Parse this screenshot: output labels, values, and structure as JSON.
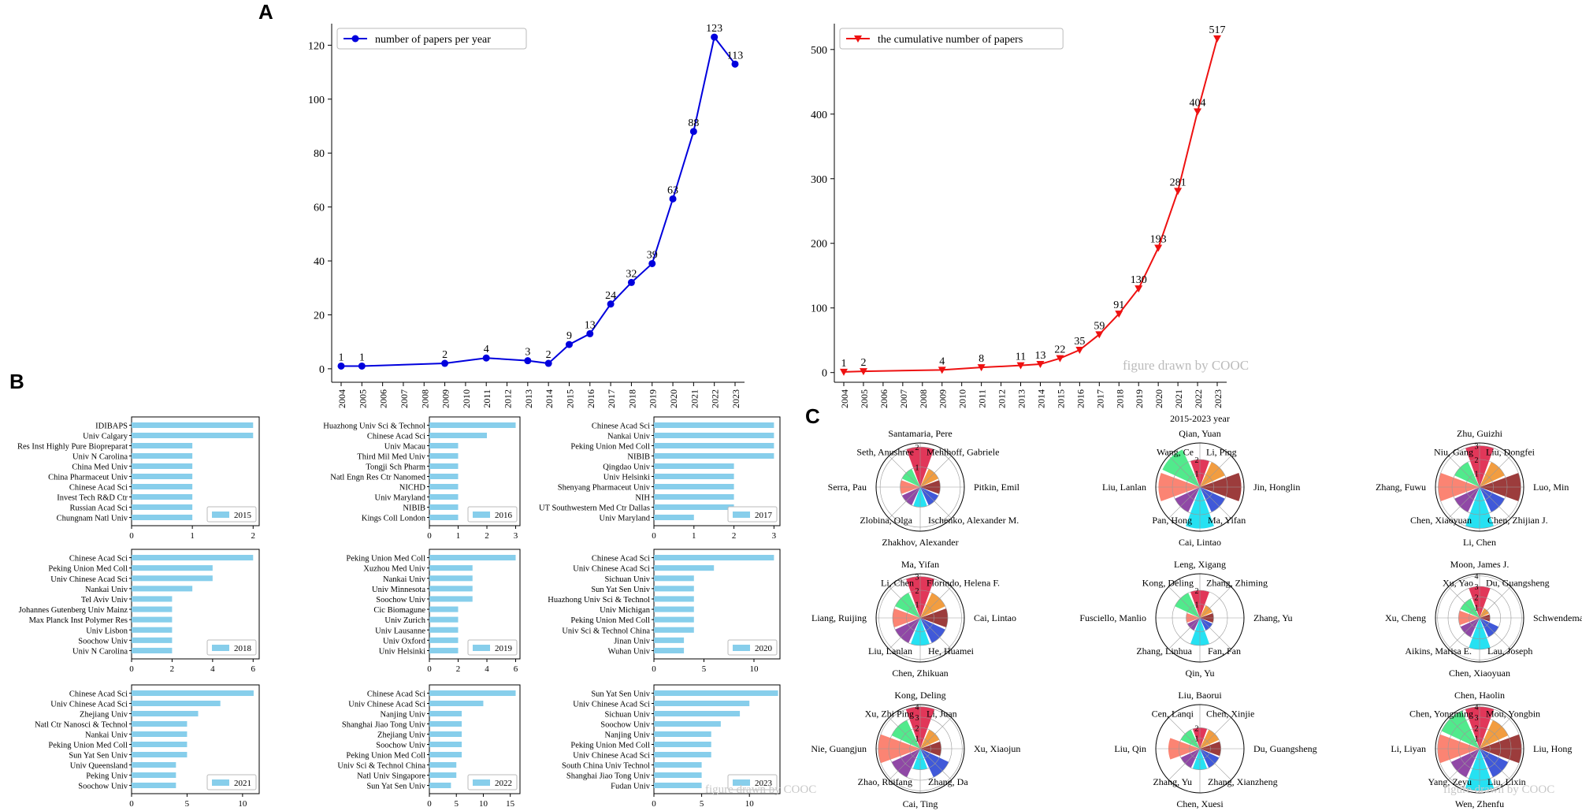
{
  "panel_labels": {
    "A": "A",
    "B": "B",
    "C": "C"
  },
  "watermark": "figure drawn by COOC",
  "chart_data": [
    {
      "id": "papers_per_year",
      "type": "line",
      "legend": "number of papers per year",
      "legend_position": "top-left",
      "color": "#0000dd",
      "marker": "circle",
      "x_ticks": [
        "2004",
        "2005",
        "2006",
        "2007",
        "2008",
        "2009",
        "2010",
        "2011",
        "2012",
        "2013",
        "2014",
        "2015",
        "2016",
        "2017",
        "2018",
        "2019",
        "2020",
        "2021",
        "2022",
        "2023"
      ],
      "points": [
        {
          "x": "2004",
          "y": 1,
          "label": "1"
        },
        {
          "x": "2005",
          "y": 1,
          "label": "1"
        },
        {
          "x": "2009",
          "y": 2,
          "label": "2"
        },
        {
          "x": "2011",
          "y": 4,
          "label": "4"
        },
        {
          "x": "2013",
          "y": 3,
          "label": "3"
        },
        {
          "x": "2014",
          "y": 2,
          "label": "2"
        },
        {
          "x": "2015",
          "y": 9,
          "label": "9"
        },
        {
          "x": "2016",
          "y": 13,
          "label": "13"
        },
        {
          "x": "2017",
          "y": 24,
          "label": "24"
        },
        {
          "x": "2018",
          "y": 32,
          "label": "32"
        },
        {
          "x": "2019",
          "y": 39,
          "label": "39"
        },
        {
          "x": "2020",
          "y": 63,
          "label": "63"
        },
        {
          "x": "2021",
          "y": 88,
          "label": "88"
        },
        {
          "x": "2022",
          "y": 123,
          "label": "123"
        },
        {
          "x": "2023",
          "y": 113,
          "label": "113"
        }
      ],
      "ylim": [
        -5,
        128
      ],
      "y_ticks": [
        0,
        20,
        40,
        60,
        80,
        100,
        120
      ]
    },
    {
      "id": "cumulative_papers",
      "type": "line",
      "legend": "the cumulative number of papers",
      "legend_position": "top-left",
      "color": "#ee1111",
      "marker": "triangle-down",
      "x_ticks": [
        "2004",
        "2005",
        "2006",
        "2007",
        "2008",
        "2009",
        "2010",
        "2011",
        "2012",
        "2013",
        "2014",
        "2015",
        "2016",
        "2017",
        "2018",
        "2019",
        "2020",
        "2021",
        "2022",
        "2023"
      ],
      "points": [
        {
          "x": "2004",
          "y": 1,
          "label": "1"
        },
        {
          "x": "2005",
          "y": 2,
          "label": "2"
        },
        {
          "x": "2009",
          "y": 4,
          "label": "4"
        },
        {
          "x": "2011",
          "y": 8,
          "label": "8"
        },
        {
          "x": "2013",
          "y": 11,
          "label": "11"
        },
        {
          "x": "2014",
          "y": 13,
          "label": "13"
        },
        {
          "x": "2015",
          "y": 22,
          "label": "22"
        },
        {
          "x": "2016",
          "y": 35,
          "label": "35"
        },
        {
          "x": "2017",
          "y": 59,
          "label": "59"
        },
        {
          "x": "2018",
          "y": 91,
          "label": "91"
        },
        {
          "x": "2019",
          "y": 130,
          "label": "130"
        },
        {
          "x": "2020",
          "y": 193,
          "label": "193"
        },
        {
          "x": "2021",
          "y": 281,
          "label": "281"
        },
        {
          "x": "2022",
          "y": 404,
          "label": "404"
        },
        {
          "x": "2023",
          "y": 517,
          "label": "517"
        }
      ],
      "ylim": [
        -15,
        540
      ],
      "y_ticks": [
        0,
        100,
        200,
        300,
        400,
        500
      ]
    },
    {
      "id": "institutions_by_year",
      "type": "bar",
      "orientation": "horizontal",
      "bar_color": "#87ceeb",
      "panels": [
        {
          "year": "2015",
          "xmax": 2.1,
          "ticks": [
            0,
            1,
            2
          ],
          "categories": [
            "IDIBAPS",
            "Univ Calgary",
            "Res Inst Highly Pure Biopreparat",
            "Univ N Carolina",
            "China Med Univ",
            "China Pharmaceut Univ",
            "Chinese Acad Sci",
            "Invest Tech R&D Ctr",
            "Russian Acad Sci",
            "Chungnam Natl Univ"
          ],
          "values": [
            2,
            2,
            1,
            1,
            1,
            1,
            1,
            1,
            1,
            1
          ]
        },
        {
          "year": "2016",
          "xmax": 3.15,
          "ticks": [
            0,
            1,
            2,
            3
          ],
          "categories": [
            "Huazhong Univ Sci & Technol",
            "Chinese Acad Sci",
            "Univ Macau",
            "Third Mil Med Univ",
            "Tongji Sch Pharm",
            "Natl Engn Res Ctr Nanomed",
            "NICHD",
            "Univ Maryland",
            "NIBIB",
            "Kings Coll London"
          ],
          "values": [
            3,
            2,
            1,
            1,
            1,
            1,
            1,
            1,
            1,
            1
          ]
        },
        {
          "year": "2017",
          "xmax": 3.15,
          "ticks": [
            0,
            1,
            2,
            3
          ],
          "categories": [
            "Chinese Acad Sci",
            "Nankai Univ",
            "Peking Union Med Coll",
            "NIBIB",
            "Qingdao Univ",
            "Univ Helsinki",
            "Shenyang Pharmaceut Univ",
            "NIH",
            "UT Southwestern Med Ctr Dallas",
            "Univ Maryland"
          ],
          "values": [
            3,
            3,
            3,
            3,
            2,
            2,
            2,
            2,
            2,
            1
          ]
        },
        {
          "year": "2018",
          "xmax": 6.3,
          "ticks": [
            0,
            2,
            4,
            6
          ],
          "categories": [
            "Chinese Acad Sci",
            "Peking Union Med Coll",
            "Univ Chinese Acad Sci",
            "Nankai Univ",
            "Tel Aviv Univ",
            "Johannes Gutenberg Univ Mainz",
            "Max Planck Inst Polymer Res",
            "Univ Lisbon",
            "Soochow Univ",
            "Univ N Carolina"
          ],
          "values": [
            6,
            4,
            4,
            3,
            2,
            2,
            2,
            2,
            2,
            2
          ]
        },
        {
          "year": "2019",
          "xmax": 6.3,
          "ticks": [
            0,
            2,
            4,
            6
          ],
          "categories": [
            "Peking Union Med Coll",
            "Xuzhou Med Univ",
            "Nankai Univ",
            "Univ Minnesota",
            "Soochow Univ",
            "Cic Biomagune",
            "Univ Zurich",
            "Univ Lausanne",
            "Univ Oxford",
            "Univ Helsinki"
          ],
          "values": [
            6,
            3,
            3,
            3,
            3,
            2,
            2,
            2,
            2,
            2
          ]
        },
        {
          "year": "2020",
          "xmax": 12.6,
          "ticks": [
            0,
            5,
            10
          ],
          "categories": [
            "Chinese Acad Sci",
            "Univ Chinese Acad Sci",
            "Sichuan Univ",
            "Sun Yat Sen Univ",
            "Huazhong Univ Sci & Technol",
            "Univ Michigan",
            "Peking Union Med Coll",
            "Univ Sci & Technol China",
            "Jinan Univ",
            "Wuhan Univ"
          ],
          "values": [
            12,
            6,
            4,
            4,
            4,
            4,
            4,
            4,
            3,
            3
          ]
        },
        {
          "year": "2021",
          "xmax": 11.5,
          "ticks": [
            0,
            5,
            10
          ],
          "categories": [
            "Chinese Acad Sci",
            "Univ Chinese Acad Sci",
            "Zhejiang Univ",
            "Natl Ctr Nanosci & Technol",
            "Nankai Univ",
            "Peking Union Med Coll",
            "Sun Yat Sen Univ",
            "Univ Queensland",
            "Peking Univ",
            "Soochow Univ"
          ],
          "values": [
            11,
            8,
            6,
            5,
            5,
            5,
            5,
            4,
            4,
            4
          ]
        },
        {
          "year": "2022",
          "xmax": 16.8,
          "ticks": [
            0,
            5,
            10,
            15
          ],
          "categories": [
            "Chinese Acad Sci",
            "Univ Chinese Acad Sci",
            "Nanjing Univ",
            "Shanghai Jiao Tong Univ",
            "Zhejiang Univ",
            "Soochow Univ",
            "Peking Union Med Coll",
            "Univ Sci & Technol China",
            "Natl Univ Singapore",
            "Sun Yat Sen Univ"
          ],
          "values": [
            16,
            10,
            6,
            6,
            6,
            6,
            6,
            5,
            5,
            4
          ]
        },
        {
          "year": "2023",
          "xmax": 13.2,
          "ticks": [
            0,
            5,
            10
          ],
          "categories": [
            "Sun Yat Sen Univ",
            "Univ Chinese Acad Sci",
            "Sichuan Univ",
            "Soochow Univ",
            "Nanjing Univ",
            "Peking Union Med Coll",
            "Univ Chinese Acad Sci",
            "South China Univ Technol",
            "Shanghai Jiao Tong Univ",
            "Fudan Univ"
          ],
          "values": [
            13,
            10,
            9,
            7,
            6,
            6,
            6,
            5,
            5,
            5
          ]
        }
      ]
    },
    {
      "id": "author_polar",
      "type": "polar-bar",
      "title": "2015-2023 year",
      "colors": [
        "#dc143c",
        "#f08c1e",
        "#8b1a1a",
        "#1e3cd2",
        "#00dcf0",
        "#7d2896",
        "#fa6e5a",
        "#32e678"
      ],
      "panels": [
        {
          "year": "2015",
          "rmax": 2.2,
          "ticks": [
            "1",
            "2"
          ],
          "authors": [
            "Santamaria, Pere",
            "Mehlhoff, Gabriele",
            "Pitkin, Emil",
            "Ischenko, Alexander M.",
            "Zhakhov, Alexander",
            "Zlobina, Olga",
            "Serra, Pau",
            "Seth, Anushree"
          ],
          "values": [
            2,
            1,
            1,
            1,
            1,
            1,
            1,
            1
          ]
        },
        {
          "year": "2016",
          "rmax": 3.2,
          "ticks": [
            "1",
            "2"
          ],
          "authors": [
            "Qian, Yuan",
            "Li, Ping",
            "Jin, Honglin",
            "Ma, Yifan",
            "Cai, Lintao",
            "Pan, Hong",
            "Liu, Lanlan",
            "Wang, Ce"
          ],
          "values": [
            2,
            2,
            3,
            2,
            3,
            2,
            3,
            3
          ]
        },
        {
          "year": "2017",
          "rmax": 3.2,
          "ticks": [
            "1",
            "2",
            "3"
          ],
          "authors": [
            "Zhu, Guizhi",
            "Liu, Dongfei",
            "Luo, Min",
            "Chen, Zhijian J.",
            "Li, Chen",
            "Chen, Xiaoyuan",
            "Zhang, Fuwu",
            "Niu, Gang"
          ],
          "values": [
            3,
            2,
            3,
            2,
            3,
            2,
            3,
            2
          ]
        },
        {
          "year": "2018",
          "rmax": 3.2,
          "ticks": [
            "1",
            "2",
            "3"
          ],
          "authors": [
            "Ma, Yifan",
            "Florindo, Helena F.",
            "Cai, Lintao",
            "He, Huamei",
            "Chen, Zhikuan",
            "Liu, Lanlan",
            "Liang, Ruijing",
            "Li, Chen"
          ],
          "values": [
            3,
            2,
            2,
            2,
            2,
            2,
            2,
            2
          ]
        },
        {
          "year": "2019",
          "rmax": 3.2,
          "ticks": [
            "1",
            "2"
          ],
          "authors": [
            "Leng, Xigang",
            "Zhang, Zhiming",
            "Zhang, Yu",
            "Fan, Fan",
            "Qin, Yu",
            "Zhang, Linhua",
            "Fusciello, Manlio",
            "Kong, Deling"
          ],
          "values": [
            2,
            1,
            1,
            1,
            2,
            1,
            1,
            2
          ]
        },
        {
          "year": "2020",
          "rmax": 4.2,
          "ticks": [
            "1",
            "2",
            "3",
            "4"
          ],
          "authors": [
            "Moon, James J.",
            "Du, Guangsheng",
            "Schwendeman, Anna",
            "Lau, Joseph",
            "Chen, Xiaoyuan",
            "Aikins, Marisa E.",
            "Xu, Cheng",
            "Xu, Yao"
          ],
          "values": [
            3,
            1,
            1,
            2,
            3,
            2,
            2,
            2
          ]
        },
        {
          "year": "2021",
          "rmax": 4.2,
          "ticks": [
            "1",
            "2",
            "3",
            "4"
          ],
          "authors": [
            "Kong, Deling",
            "Li, Juan",
            "Xu, Xiaojun",
            "Zhang, Da",
            "Cai, Ting",
            "Zhao, Ruifang",
            "Nie, Guangjun",
            "Xu, Zhi Ping"
          ],
          "values": [
            4,
            2,
            2,
            3,
            2,
            3,
            4,
            3
          ]
        },
        {
          "year": "2022",
          "rmax": 4.2,
          "ticks": [
            "1",
            "2"
          ],
          "authors": [
            "Liu, Baorui",
            "Chen, Xinjie",
            "Du, Guangsheng",
            "Zhang, Xianzheng",
            "Chen, Xuesi",
            "Zhang, Yu",
            "Liu, Qin",
            "Cen, Lanqi"
          ],
          "values": [
            2,
            2,
            2,
            2,
            2,
            2,
            3,
            2
          ]
        },
        {
          "year": "2023",
          "rmax": 4.2,
          "ticks": [
            "1",
            "2",
            "3",
            "4"
          ],
          "authors": [
            "Chen, Haolin",
            "Mou, Yongbin",
            "Liu, Hong",
            "Liu, Lixin",
            "Wen, Zhenfu",
            "Yang, Zeyu",
            "Li, Liyan",
            "Chen, Yongming"
          ],
          "values": [
            4,
            3,
            4,
            3,
            4,
            3,
            4,
            4
          ]
        }
      ]
    }
  ]
}
